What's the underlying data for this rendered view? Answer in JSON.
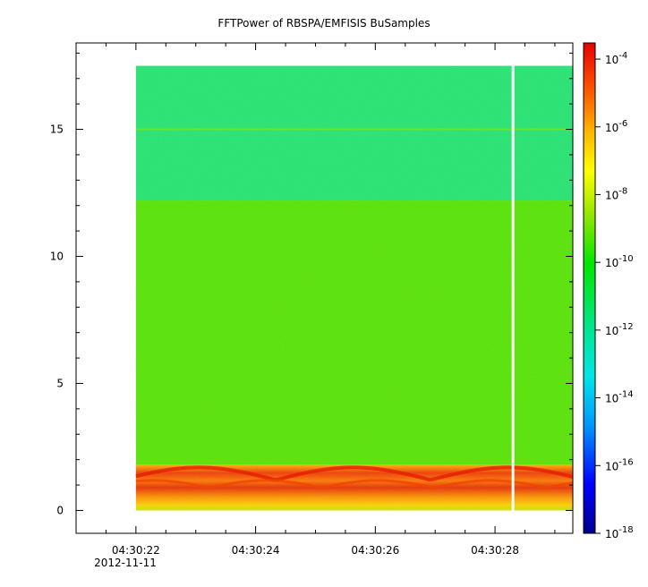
{
  "chart_data": {
    "type": "heatmap",
    "title": "FFTPower of RBSPA/EMFISIS  BuSamples",
    "xlabel": "",
    "ylabel": "",
    "x_ticks": [
      "04:30:22",
      "04:30:24",
      "04:30:26",
      "04:30:28"
    ],
    "x_date_label": "2012-11-11",
    "x_range": [
      "04:30:21.0",
      "04:30:29.3"
    ],
    "data_x_range": [
      "04:30:22.0",
      "04:30:29.3"
    ],
    "data_gap_at": "04:30:28.3",
    "y_ticks": [
      0,
      5,
      10,
      15
    ],
    "ylim": [
      -0.9,
      18.4
    ],
    "data_y_range": [
      0,
      17.5
    ],
    "colorbar": {
      "scale": "log",
      "range": [
        "1e-18",
        "3e-4"
      ],
      "tick_exponents": [
        -4,
        -6,
        -8,
        -10,
        -12,
        -14,
        -16,
        -18
      ],
      "tick_base": "10",
      "colormap": [
        "#00008b",
        "#0000ff",
        "#0096ff",
        "#00e6e6",
        "#00e68c",
        "#00e600",
        "#96e600",
        "#ffff00",
        "#ffb400",
        "#ff5a00",
        "#e60000"
      ]
    },
    "bands": [
      {
        "y_range": [
          0,
          1.8
        ],
        "level": "1e-8 to 1e-5",
        "color": "#ffb400",
        "description_color": "orange-red"
      },
      {
        "y_range": [
          1.8,
          12.2
        ],
        "level": "~1e-10",
        "color": "#55e600"
      },
      {
        "y_range": [
          12.2,
          17.5
        ],
        "level": "~1e-12",
        "color": "#22e670"
      }
    ],
    "line_feature": {
      "y": 15,
      "color": "#66e632"
    }
  }
}
